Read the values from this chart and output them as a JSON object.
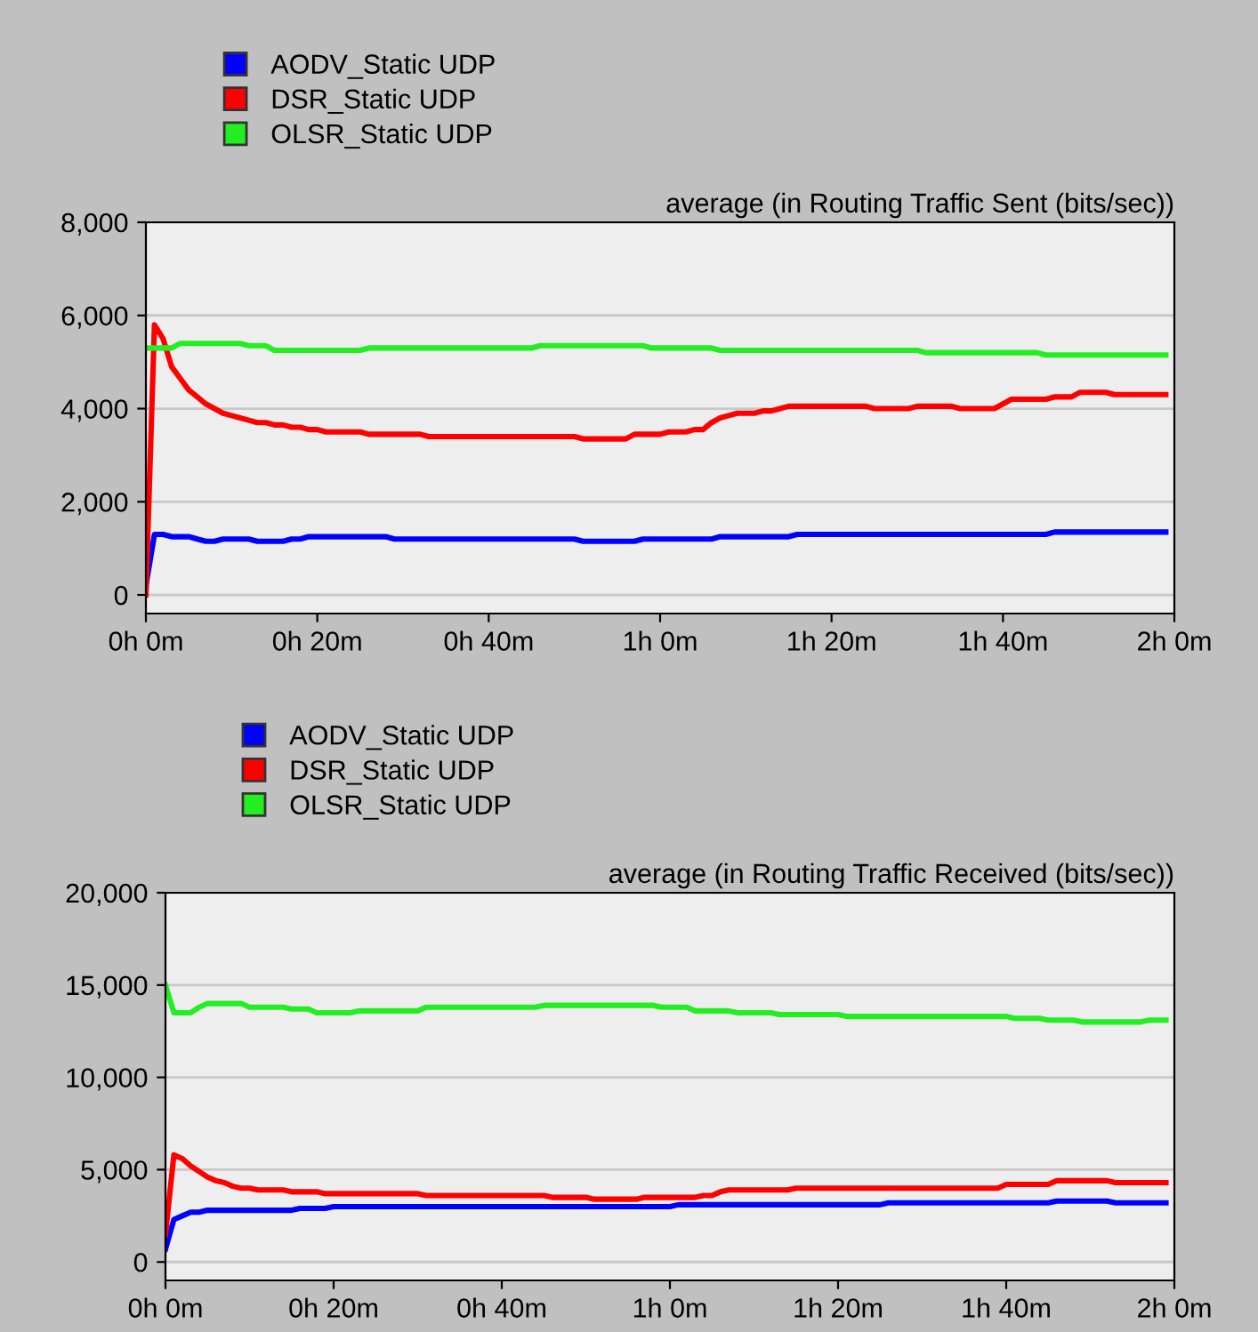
{
  "chart_data": [
    {
      "type": "line",
      "title": "average (in Routing Traffic Sent (bits/sec))",
      "categories": [
        "0h 0m",
        null,
        null,
        null,
        null,
        null,
        null,
        null,
        null,
        null,
        null,
        null,
        null,
        null,
        null,
        null,
        null,
        null,
        null,
        null,
        "0h 20m",
        null,
        null,
        null,
        null,
        null,
        null,
        null,
        null,
        null,
        null,
        null,
        null,
        null,
        null,
        null,
        null,
        null,
        null,
        null,
        "0h 40m",
        null,
        null,
        null,
        null,
        null,
        null,
        null,
        null,
        null,
        null,
        null,
        null,
        null,
        null,
        null,
        null,
        null,
        null,
        null,
        "1h 0m",
        null,
        null,
        null,
        null,
        null,
        null,
        null,
        null,
        null,
        null,
        null,
        null,
        null,
        null,
        null,
        null,
        null,
        null,
        null,
        "1h 20m",
        null,
        null,
        null,
        null,
        null,
        null,
        null,
        null,
        null,
        null,
        null,
        null,
        null,
        null,
        null,
        null,
        null,
        null,
        null,
        "1h 40m",
        null,
        null,
        null,
        null,
        null,
        null,
        null,
        null,
        null,
        null,
        null,
        null,
        null,
        null,
        null,
        null,
        null,
        null,
        null,
        "2h 0m"
      ],
      "ylim": [
        -400,
        8000
      ],
      "yticks": [
        {
          "value": 0,
          "label": "0"
        },
        {
          "value": 2000,
          "label": "2,000"
        },
        {
          "value": 4000,
          "label": "4,000"
        },
        {
          "value": 6000,
          "label": "6,000"
        },
        {
          "value": 8000,
          "label": "8,000"
        }
      ],
      "grid": "y",
      "legend": "top left",
      "series": [
        {
          "name": "AODV_Static UDP",
          "color": "#0000ff",
          "values": [
            200,
            1300,
            1300,
            1250,
            1250,
            1250,
            1200,
            1150,
            1150,
            1200,
            1200,
            1200,
            1200,
            1150,
            1150,
            1150,
            1150,
            1200,
            1200,
            1250,
            1250,
            1250,
            1250,
            1250,
            1250,
            1250,
            1250,
            1250,
            1250,
            1200,
            1200,
            1200,
            1200,
            1200,
            1200,
            1200,
            1200,
            1200,
            1200,
            1200,
            1200,
            1200,
            1200,
            1200,
            1200,
            1200,
            1200,
            1200,
            1200,
            1200,
            1200,
            1150,
            1150,
            1150,
            1150,
            1150,
            1150,
            1150,
            1200,
            1200,
            1200,
            1200,
            1200,
            1200,
            1200,
            1200,
            1200,
            1250,
            1250,
            1250,
            1250,
            1250,
            1250,
            1250,
            1250,
            1250,
            1300,
            1300,
            1300,
            1300,
            1300,
            1300,
            1300,
            1300,
            1300,
            1300,
            1300,
            1300,
            1300,
            1300,
            1300,
            1300,
            1300,
            1300,
            1300,
            1300,
            1300,
            1300,
            1300,
            1300,
            1300,
            1300,
            1300,
            1300,
            1300,
            1300,
            1350,
            1350,
            1350,
            1350,
            1350,
            1350,
            1350,
            1350,
            1350,
            1350,
            1350,
            1350,
            1350,
            1350,
            null
          ]
        },
        {
          "name": "DSR_Static UDP",
          "color": "#ff0000",
          "values": [
            0,
            5800,
            5500,
            4900,
            4650,
            4400,
            4250,
            4100,
            4000,
            3900,
            3850,
            3800,
            3750,
            3700,
            3700,
            3650,
            3650,
            3600,
            3600,
            3550,
            3550,
            3500,
            3500,
            3500,
            3500,
            3500,
            3450,
            3450,
            3450,
            3450,
            3450,
            3450,
            3450,
            3400,
            3400,
            3400,
            3400,
            3400,
            3400,
            3400,
            3400,
            3400,
            3400,
            3400,
            3400,
            3400,
            3400,
            3400,
            3400,
            3400,
            3400,
            3350,
            3350,
            3350,
            3350,
            3350,
            3350,
            3450,
            3450,
            3450,
            3450,
            3500,
            3500,
            3500,
            3550,
            3550,
            3700,
            3800,
            3850,
            3900,
            3900,
            3900,
            3950,
            3950,
            4000,
            4050,
            4050,
            4050,
            4050,
            4050,
            4050,
            4050,
            4050,
            4050,
            4050,
            4000,
            4000,
            4000,
            4000,
            4000,
            4050,
            4050,
            4050,
            4050,
            4050,
            4000,
            4000,
            4000,
            4000,
            4000,
            4100,
            4200,
            4200,
            4200,
            4200,
            4200,
            4250,
            4250,
            4250,
            4350,
            4350,
            4350,
            4350,
            4300,
            4300,
            4300,
            4300,
            4300,
            4300,
            4300,
            null
          ]
        },
        {
          "name": "OLSR_Static UDP",
          "color": "#22ee22",
          "values": [
            5300,
            5300,
            5300,
            5300,
            5400,
            5400,
            5400,
            5400,
            5400,
            5400,
            5400,
            5400,
            5350,
            5350,
            5350,
            5250,
            5250,
            5250,
            5250,
            5250,
            5250,
            5250,
            5250,
            5250,
            5250,
            5250,
            5300,
            5300,
            5300,
            5300,
            5300,
            5300,
            5300,
            5300,
            5300,
            5300,
            5300,
            5300,
            5300,
            5300,
            5300,
            5300,
            5300,
            5300,
            5300,
            5300,
            5350,
            5350,
            5350,
            5350,
            5350,
            5350,
            5350,
            5350,
            5350,
            5350,
            5350,
            5350,
            5350,
            5300,
            5300,
            5300,
            5300,
            5300,
            5300,
            5300,
            5300,
            5250,
            5250,
            5250,
            5250,
            5250,
            5250,
            5250,
            5250,
            5250,
            5250,
            5250,
            5250,
            5250,
            5250,
            5250,
            5250,
            5250,
            5250,
            5250,
            5250,
            5250,
            5250,
            5250,
            5250,
            5200,
            5200,
            5200,
            5200,
            5200,
            5200,
            5200,
            5200,
            5200,
            5200,
            5200,
            5200,
            5200,
            5200,
            5150,
            5150,
            5150,
            5150,
            5150,
            5150,
            5150,
            5150,
            5150,
            5150,
            5150,
            5150,
            5150,
            5150,
            5150,
            null
          ]
        }
      ]
    },
    {
      "type": "line",
      "title": "average (in Routing Traffic Received (bits/sec))",
      "categories": [
        "0h 0m",
        null,
        null,
        null,
        null,
        null,
        null,
        null,
        null,
        null,
        null,
        null,
        null,
        null,
        null,
        null,
        null,
        null,
        null,
        null,
        "0h 20m",
        null,
        null,
        null,
        null,
        null,
        null,
        null,
        null,
        null,
        null,
        null,
        null,
        null,
        null,
        null,
        null,
        null,
        null,
        null,
        "0h 40m",
        null,
        null,
        null,
        null,
        null,
        null,
        null,
        null,
        null,
        null,
        null,
        null,
        null,
        null,
        null,
        null,
        null,
        null,
        null,
        "1h 0m",
        null,
        null,
        null,
        null,
        null,
        null,
        null,
        null,
        null,
        null,
        null,
        null,
        null,
        null,
        null,
        null,
        null,
        null,
        null,
        "1h 20m",
        null,
        null,
        null,
        null,
        null,
        null,
        null,
        null,
        null,
        null,
        null,
        null,
        null,
        null,
        null,
        null,
        null,
        null,
        null,
        "1h 40m",
        null,
        null,
        null,
        null,
        null,
        null,
        null,
        null,
        null,
        null,
        null,
        null,
        null,
        null,
        null,
        null,
        null,
        null,
        null,
        "2h 0m"
      ],
      "ylim": [
        -1000,
        20000
      ],
      "yticks": [
        {
          "value": 0,
          "label": "0"
        },
        {
          "value": 5000,
          "label": "5,000"
        },
        {
          "value": 10000,
          "label": "10,000"
        },
        {
          "value": 15000,
          "label": "15,000"
        },
        {
          "value": 20000,
          "label": "20,000"
        }
      ],
      "grid": "y",
      "legend": "top left",
      "series": [
        {
          "name": "AODV_Static UDP",
          "color": "#0000ff",
          "values": [
            700,
            2300,
            2500,
            2700,
            2700,
            2800,
            2800,
            2800,
            2800,
            2800,
            2800,
            2800,
            2800,
            2800,
            2800,
            2800,
            2900,
            2900,
            2900,
            2900,
            3000,
            3000,
            3000,
            3000,
            3000,
            3000,
            3000,
            3000,
            3000,
            3000,
            3000,
            3000,
            3000,
            3000,
            3000,
            3000,
            3000,
            3000,
            3000,
            3000,
            3000,
            3000,
            3000,
            3000,
            3000,
            3000,
            3000,
            3000,
            3000,
            3000,
            3000,
            3000,
            3000,
            3000,
            3000,
            3000,
            3000,
            3000,
            3000,
            3000,
            3000,
            3100,
            3100,
            3100,
            3100,
            3100,
            3100,
            3100,
            3100,
            3100,
            3100,
            3100,
            3100,
            3100,
            3100,
            3100,
            3100,
            3100,
            3100,
            3100,
            3100,
            3100,
            3100,
            3100,
            3100,
            3100,
            3200,
            3200,
            3200,
            3200,
            3200,
            3200,
            3200,
            3200,
            3200,
            3200,
            3200,
            3200,
            3200,
            3200,
            3200,
            3200,
            3200,
            3200,
            3200,
            3200,
            3300,
            3300,
            3300,
            3300,
            3300,
            3300,
            3300,
            3200,
            3200,
            3200,
            3200,
            3200,
            3200,
            3200,
            null
          ]
        },
        {
          "name": "DSR_Static UDP",
          "color": "#ff0000",
          "values": [
            1500,
            5800,
            5600,
            5200,
            4900,
            4600,
            4400,
            4300,
            4100,
            4000,
            4000,
            3900,
            3900,
            3900,
            3900,
            3800,
            3800,
            3800,
            3800,
            3700,
            3700,
            3700,
            3700,
            3700,
            3700,
            3700,
            3700,
            3700,
            3700,
            3700,
            3700,
            3600,
            3600,
            3600,
            3600,
            3600,
            3600,
            3600,
            3600,
            3600,
            3600,
            3600,
            3600,
            3600,
            3600,
            3600,
            3500,
            3500,
            3500,
            3500,
            3500,
            3400,
            3400,
            3400,
            3400,
            3400,
            3400,
            3500,
            3500,
            3500,
            3500,
            3500,
            3500,
            3500,
            3600,
            3600,
            3800,
            3900,
            3900,
            3900,
            3900,
            3900,
            3900,
            3900,
            3900,
            4000,
            4000,
            4000,
            4000,
            4000,
            4000,
            4000,
            4000,
            4000,
            4000,
            4000,
            4000,
            4000,
            4000,
            4000,
            4000,
            4000,
            4000,
            4000,
            4000,
            4000,
            4000,
            4000,
            4000,
            4000,
            4200,
            4200,
            4200,
            4200,
            4200,
            4200,
            4400,
            4400,
            4400,
            4400,
            4400,
            4400,
            4400,
            4300,
            4300,
            4300,
            4300,
            4300,
            4300,
            4300,
            null
          ]
        },
        {
          "name": "OLSR_Static UDP",
          "color": "#22ee22",
          "values": [
            15000,
            13500,
            13500,
            13500,
            13800,
            14000,
            14000,
            14000,
            14000,
            14000,
            13800,
            13800,
            13800,
            13800,
            13800,
            13700,
            13700,
            13700,
            13500,
            13500,
            13500,
            13500,
            13500,
            13600,
            13600,
            13600,
            13600,
            13600,
            13600,
            13600,
            13600,
            13800,
            13800,
            13800,
            13800,
            13800,
            13800,
            13800,
            13800,
            13800,
            13800,
            13800,
            13800,
            13800,
            13800,
            13900,
            13900,
            13900,
            13900,
            13900,
            13900,
            13900,
            13900,
            13900,
            13900,
            13900,
            13900,
            13900,
            13900,
            13800,
            13800,
            13800,
            13800,
            13600,
            13600,
            13600,
            13600,
            13600,
            13500,
            13500,
            13500,
            13500,
            13500,
            13400,
            13400,
            13400,
            13400,
            13400,
            13400,
            13400,
            13400,
            13300,
            13300,
            13300,
            13300,
            13300,
            13300,
            13300,
            13300,
            13300,
            13300,
            13300,
            13300,
            13300,
            13300,
            13300,
            13300,
            13300,
            13300,
            13300,
            13300,
            13200,
            13200,
            13200,
            13200,
            13100,
            13100,
            13100,
            13100,
            13000,
            13000,
            13000,
            13000,
            13000,
            13000,
            13000,
            13000,
            13100,
            13100,
            13100,
            null
          ]
        }
      ]
    }
  ]
}
